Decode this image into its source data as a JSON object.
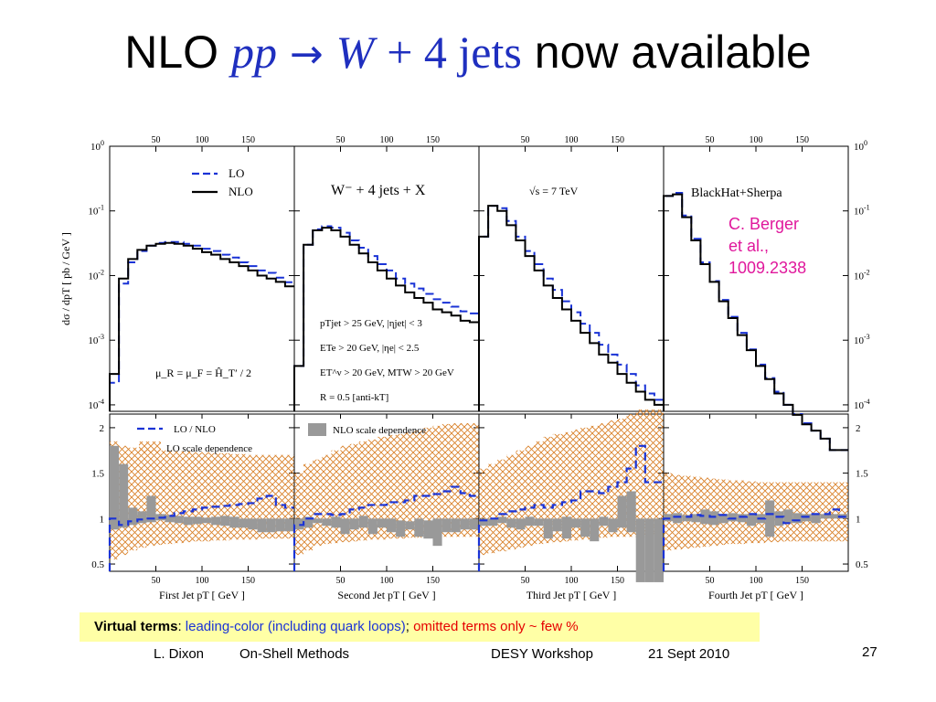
{
  "slide": {
    "title_prefix": "NLO",
    "title_pp": "pp",
    "title_arrow": "→",
    "title_W": "W",
    "title_plus4jets": "+ 4 jets",
    "title_suffix": "now available",
    "citation": [
      "C. Berger",
      "et al.,",
      "1009.2338"
    ],
    "virtual_bold": "Virtual terms",
    "virtual_colon": ": ",
    "virtual_blue": "leading-color (including quark loops)",
    "virtual_sep": "; ",
    "virtual_red": "omitted terms only ~ few %",
    "footer_author": "L. Dixon",
    "footer_talk": "On-Shell Methods",
    "footer_venue": "DESY Workshop",
    "footer_date": "21 Sept 2010",
    "page_number": "27"
  },
  "colors": {
    "lo": "#1a33d6",
    "nlo": "#000000",
    "hatch": "#d9822b",
    "band": "#999999",
    "title_blue": "#1f2fbf",
    "citation": "#e0189c",
    "highlight": "#ffffa6"
  },
  "chart_data": {
    "type": "line",
    "top_ticks": [
      "50",
      "100",
      "150"
    ],
    "y_ticks_main_exp": [
      "0",
      "-1",
      "-2",
      "-3",
      "-4"
    ],
    "ylabel": "dσ / dp_T [ pb / GeV ]",
    "ratio_ticks": [
      "2",
      "1.5",
      "1",
      "0.5"
    ],
    "xlim": [
      0,
      200
    ],
    "panels": [
      {
        "name": "First Jet",
        "xlabel": "First Jet p_T [ GeV ]",
        "legend": [
          "LO",
          "NLO"
        ],
        "annotation": "μ_R = μ_F = Ĥ_T′ / 2",
        "ratio_legend": [
          "LO / NLO",
          "LO scale dependence"
        ],
        "x": [
          10,
          20,
          30,
          40,
          50,
          60,
          70,
          80,
          90,
          100,
          110,
          120,
          130,
          140,
          150,
          160,
          170,
          180,
          190,
          200
        ],
        "nlo": [
          0.0003,
          0.009,
          0.018,
          0.025,
          0.029,
          0.031,
          0.032,
          0.031,
          0.029,
          0.026,
          0.023,
          0.021,
          0.018,
          0.016,
          0.014,
          0.012,
          0.01,
          0.009,
          0.008,
          0.0068
        ],
        "lo": [
          0.00022,
          0.0075,
          0.016,
          0.024,
          0.029,
          0.032,
          0.033,
          0.033,
          0.031,
          0.029,
          0.026,
          0.024,
          0.021,
          0.019,
          0.016,
          0.014,
          0.012,
          0.011,
          0.0093,
          0.0079
        ],
        "ratio_lo": [
          1.0,
          0.93,
          0.97,
          0.99,
          1.0,
          1.01,
          1.03,
          1.06,
          1.08,
          1.1,
          1.12,
          1.13,
          1.14,
          1.15,
          1.16,
          1.17,
          1.22,
          1.25,
          1.15,
          1.12
        ],
        "nlo_band_lo": [
          0.88,
          0.9,
          0.93,
          0.95,
          0.96,
          0.98,
          0.96,
          0.95,
          0.93,
          0.94,
          0.95,
          0.93,
          0.92,
          0.9,
          0.9,
          0.88,
          0.85,
          0.85,
          0.86,
          0.86
        ],
        "nlo_band_hi": [
          1.8,
          1.6,
          1.12,
          1.08,
          1.25,
          1.05,
          1.04,
          1.03,
          1.02,
          1.02,
          1.01,
          1.02,
          1.03,
          1.02,
          1.0,
          1.0,
          1.0,
          1.0,
          1.0,
          1.0
        ],
        "hatch_lo": [
          0.55,
          0.6,
          0.65,
          0.68,
          0.7,
          0.71,
          0.72,
          0.73,
          0.74,
          0.75,
          0.75,
          0.76,
          0.76,
          0.77,
          0.77,
          0.77,
          0.78,
          0.78,
          0.78,
          0.78
        ],
        "hatch_hi": [
          1.85,
          1.8,
          1.78,
          1.77,
          1.76,
          1.75,
          1.75,
          1.74,
          1.74,
          1.73,
          1.73,
          1.72,
          1.72,
          1.71,
          1.71,
          1.7,
          1.7,
          1.7,
          1.7,
          1.7
        ]
      },
      {
        "name": "Second Jet",
        "xlabel": "Second Jet p_T [ GeV ]",
        "annotation_title": "W⁻ + 4 jets + X",
        "cuts": [
          "p_T^jet > 25 GeV, |η^jet| < 3",
          "E_T^e > 20 GeV, |η^e| < 2.5",
          "E_T^ν > 20 GeV, M_T^W > 20 GeV",
          "R = 0.5 [anti-k_T]"
        ],
        "ratio_legend": [
          "NLO scale dependence"
        ],
        "x": [
          10,
          20,
          30,
          40,
          50,
          60,
          70,
          80,
          90,
          100,
          110,
          120,
          130,
          140,
          150,
          160,
          170,
          180,
          190,
          200
        ],
        "nlo": [
          0.0004,
          0.03,
          0.05,
          0.055,
          0.05,
          0.04,
          0.03,
          0.022,
          0.016,
          0.012,
          0.009,
          0.007,
          0.0055,
          0.0045,
          0.0038,
          0.003,
          0.0027,
          0.0024,
          0.002,
          0.0019
        ],
        "lo": [
          0.0004,
          0.03,
          0.052,
          0.058,
          0.055,
          0.046,
          0.035,
          0.027,
          0.02,
          0.015,
          0.012,
          0.009,
          0.0075,
          0.0063,
          0.0052,
          0.0043,
          0.0038,
          0.0033,
          0.0028,
          0.0026
        ],
        "ratio_lo": [
          0.93,
          1.0,
          1.05,
          1.05,
          1.04,
          1.05,
          1.1,
          1.12,
          1.15,
          1.15,
          1.18,
          1.18,
          1.2,
          1.25,
          1.25,
          1.27,
          1.3,
          1.35,
          1.28,
          1.25
        ],
        "nlo_band_lo": [
          0.88,
          0.9,
          0.95,
          0.92,
          0.9,
          0.83,
          0.88,
          0.9,
          0.83,
          0.9,
          0.85,
          0.8,
          0.88,
          0.8,
          0.78,
          0.7,
          0.85,
          0.85,
          0.88,
          0.88
        ],
        "nlo_band_hi": [
          1.0,
          1.02,
          1.0,
          1.0,
          1.02,
          1.0,
          1.0,
          1.03,
          1.0,
          1.0,
          1.0,
          0.98,
          0.97,
          1.0,
          0.98,
          1.0,
          1.0,
          1.0,
          1.0,
          1.0
        ],
        "hatch_lo": [
          0.6,
          0.65,
          0.7,
          0.72,
          0.73,
          0.74,
          0.75,
          0.76,
          0.77,
          0.77,
          0.78,
          0.78,
          0.79,
          0.79,
          0.8,
          0.8,
          0.8,
          0.8,
          0.8,
          0.8
        ],
        "hatch_hi": [
          1.5,
          1.6,
          1.65,
          1.7,
          1.75,
          1.8,
          1.82,
          1.85,
          1.87,
          1.9,
          1.92,
          1.93,
          1.95,
          1.97,
          2.0,
          2.02,
          2.04,
          2.05,
          2.05,
          2.05
        ]
      },
      {
        "name": "Third Jet",
        "xlabel": "Third Jet p_T [ GeV ]",
        "annotation": "√s = 7 TeV",
        "x": [
          10,
          20,
          30,
          40,
          50,
          60,
          70,
          80,
          90,
          100,
          110,
          120,
          130,
          140,
          150,
          160,
          170,
          180,
          190,
          200
        ],
        "nlo": [
          0.04,
          0.12,
          0.1,
          0.06,
          0.035,
          0.02,
          0.012,
          0.007,
          0.0045,
          0.003,
          0.002,
          0.0013,
          0.0009,
          0.0006,
          0.00045,
          0.0003,
          0.00022,
          0.00016,
          0.00012,
          0.0001
        ],
        "lo": [
          0.04,
          0.12,
          0.11,
          0.07,
          0.04,
          0.024,
          0.015,
          0.009,
          0.006,
          0.004,
          0.0027,
          0.0018,
          0.0013,
          0.00085,
          0.0006,
          0.00042,
          0.0003,
          0.0002,
          0.00015,
          0.00012
        ],
        "ratio_lo": [
          0.98,
          1.0,
          1.05,
          1.08,
          1.1,
          1.12,
          1.15,
          1.12,
          1.15,
          1.18,
          1.2,
          1.3,
          1.3,
          1.28,
          1.35,
          1.4,
          1.55,
          1.8,
          1.4,
          1.4
        ],
        "nlo_band_lo": [
          0.92,
          0.92,
          0.95,
          0.9,
          0.88,
          0.92,
          0.92,
          0.78,
          0.86,
          0.78,
          0.9,
          0.8,
          0.75,
          0.92,
          0.85,
          0.9,
          0.85,
          0.3,
          0.3,
          0.3
        ],
        "nlo_band_hi": [
          1.0,
          1.0,
          1.02,
          1.0,
          1.0,
          1.02,
          1.0,
          1.0,
          1.0,
          1.02,
          1.0,
          1.0,
          1.0,
          1.02,
          1.0,
          1.25,
          1.3,
          1.0,
          1.0,
          1.0
        ],
        "hatch_lo": [
          0.6,
          0.62,
          0.64,
          0.66,
          0.68,
          0.7,
          0.72,
          0.73,
          0.74,
          0.75,
          0.76,
          0.77,
          0.78,
          0.79,
          0.8,
          0.8,
          0.8,
          0.8,
          0.8,
          0.8
        ],
        "hatch_hi": [
          1.55,
          1.6,
          1.65,
          1.7,
          1.75,
          1.8,
          1.85,
          1.9,
          1.93,
          1.95,
          1.98,
          2.0,
          2.02,
          2.05,
          2.08,
          2.1,
          2.15,
          2.2,
          2.2,
          2.2
        ]
      },
      {
        "name": "Fourth Jet",
        "xlabel": "Fourth Jet p_T [ GeV ]",
        "annotation": "BlackHat+Sherpa",
        "x": [
          10,
          20,
          30,
          40,
          50,
          60,
          70,
          80,
          90,
          100,
          110,
          120,
          130,
          140,
          150,
          160,
          170,
          180,
          190,
          200
        ],
        "nlo": [
          0.17,
          0.18,
          0.08,
          0.035,
          0.015,
          0.008,
          0.004,
          0.0022,
          0.0012,
          0.0007,
          0.0004,
          0.00025,
          0.00015,
          0.0001,
          7e-05,
          5e-05,
          4e-05,
          3e-05,
          2e-05,
          2e-05
        ],
        "lo": [
          0.17,
          0.19,
          0.085,
          0.037,
          0.016,
          0.0082,
          0.0042,
          0.0023,
          0.0013,
          0.00072,
          0.00042,
          0.00026,
          0.00016,
          0.0001,
          7.2e-05,
          5.2e-05,
          4e-05,
          3e-05,
          2e-05,
          2e-05
        ],
        "ratio_lo": [
          1.0,
          1.02,
          1.02,
          1.04,
          1.03,
          1.02,
          1.04,
          1.0,
          1.02,
          1.05,
          1.0,
          1.05,
          1.02,
          0.95,
          0.98,
          1.02,
          1.05,
          1.05,
          1.1,
          1.02
        ],
        "nlo_band_lo": [
          0.97,
          0.95,
          0.97,
          0.96,
          0.94,
          0.93,
          0.95,
          0.97,
          0.96,
          0.92,
          0.95,
          0.8,
          0.92,
          0.95,
          0.95,
          0.97,
          0.95,
          1.0,
          1.0,
          1.0
        ],
        "nlo_band_hi": [
          1.05,
          1.06,
          1.04,
          1.05,
          1.1,
          1.08,
          1.05,
          1.06,
          1.05,
          1.05,
          1.05,
          1.2,
          1.08,
          1.1,
          1.06,
          1.05,
          1.05,
          1.05,
          1.05,
          1.05
        ],
        "hatch_lo": [
          0.65,
          0.66,
          0.67,
          0.68,
          0.69,
          0.7,
          0.71,
          0.72,
          0.72,
          0.73,
          0.73,
          0.74,
          0.74,
          0.75,
          0.75,
          0.75,
          0.75,
          0.75,
          0.75,
          0.75
        ],
        "hatch_hi": [
          1.5,
          1.48,
          1.47,
          1.46,
          1.45,
          1.44,
          1.43,
          1.42,
          1.42,
          1.41,
          1.4,
          1.4,
          1.4,
          1.4,
          1.4,
          1.4,
          1.4,
          1.4,
          1.4,
          1.4
        ]
      }
    ]
  }
}
